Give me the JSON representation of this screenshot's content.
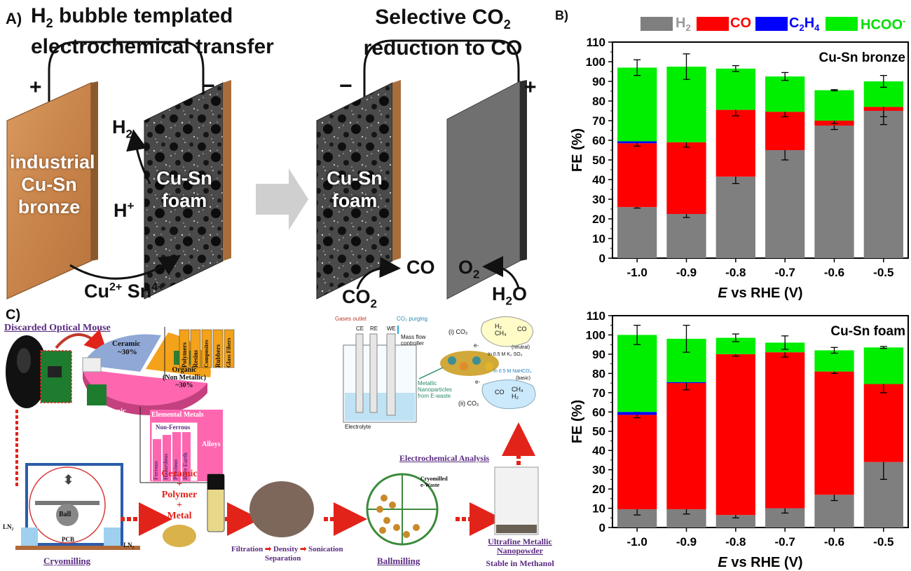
{
  "panelA": {
    "letter": "A)",
    "title_line1_prefix": "H",
    "title_line1_sub": "2",
    "title_line1_rest": " bubble templated",
    "title_line2": "electrochemical transfer",
    "right_title_line1_prefix": "Selective CO",
    "right_title_line1_sub": "2",
    "right_title_line2": "reduction to CO",
    "plus": "+",
    "minus": "−",
    "bronze_text": [
      "industrial",
      "Cu-Sn",
      "bronze"
    ],
    "foam_text": [
      "Cu-Sn",
      "foam"
    ],
    "h2": "H",
    "h2_sub": "2",
    "hplus": "H",
    "hplus_sup": "+",
    "ions_cu": "Cu",
    "ions_cu_sup": "2+",
    "ions_sn": " Sn",
    "ions_sn_sup": "4+",
    "co2": "CO",
    "co2_sub": "2",
    "co": "CO",
    "o2": "O",
    "o2_sub": "2",
    "h2o": "H",
    "h2o_sub": "2",
    "h2o_rest": "O"
  },
  "panelB": {
    "letter": "B)",
    "legend": [
      {
        "label": "H",
        "sub": "2",
        "color": "#7f7f7f"
      },
      {
        "label": "CO",
        "sub": "",
        "color": "#ff0000"
      },
      {
        "label": "C",
        "sub": "2",
        "label2": "H",
        "sub2": "4",
        "color": "#0000ff"
      },
      {
        "label": "HCOO",
        "sup": "-",
        "color": "#00ee00"
      }
    ],
    "ylabel": "FE (%)",
    "xlabel_italic": "E",
    "xlabel_rest": " vs RHE (V)"
  },
  "panelC": {
    "letter": "C)",
    "mouse_title": "Discarded Optical Mouse",
    "ceramic": "Ceramic",
    "ceramic_pct": "~30%",
    "organic": "Organic",
    "organic_sub": "(Non Metallic)",
    "organic_pct": "~30%",
    "inorganic": "Inorganic",
    "inorganic_sub": "(Metallic)",
    "inorganic_pct": "~40%",
    "organic_bars": [
      "Polymers",
      "Resins",
      "Composites",
      "Rubbers",
      "Glass Fibers"
    ],
    "elemental": "Elemental Metals",
    "nonferrous": "Non-Ferrous",
    "metal_bars": [
      "Ferrous",
      "Hazardous",
      "Precious",
      "Rare Earth"
    ],
    "alloys": "Alloys",
    "gases_outlet": "Gases outlet",
    "co2_purging": "CO₂ purging",
    "ce": "CE",
    "re": "RE",
    "we": "WE",
    "mass_flow": "Mass flow",
    "controller": "controller",
    "electrolyte": "Electrolyte",
    "metallic_np": [
      "Metallic",
      "Nanoparticles",
      "from E-waste"
    ],
    "i_co2": "(i) CO₂",
    "ii_co2": "(ii) CO₂",
    "eminus": "e-",
    "neutral_h2": "H₂",
    "neutral_ch4": "CH₄",
    "neutral_co": "CO",
    "neutral_label": "(neutral)",
    "neutral_sol": "In 0.5 M K₂ SO₄",
    "basic_sol": "In 0.5 M NaHCO₃",
    "basic_label": "(basic)",
    "basic_co": "CO",
    "basic_ch4": "CH₄",
    "basic_h2": "H₂",
    "echem": "Electrochemical Analysis",
    "ln2": "LN₂",
    "ball": "Ball",
    "pcb": "PCB",
    "cryomilling": "Cryomilling",
    "mix": [
      "Ceramic",
      "+",
      "Polymer",
      "+",
      "Metal"
    ],
    "filtration": "Filtration",
    "density": "Density",
    "sonication": "Sonication",
    "separation": "Separation",
    "cryomilled": [
      "Cryomilled",
      "e-Waste"
    ],
    "ballmilling": "Ballmilling",
    "ultrafine": [
      "Ultrafine Metallic",
      "Nanopowder"
    ],
    "stable": "Stable in Methanol"
  },
  "chart_data": [
    {
      "type": "bar",
      "stacked": true,
      "title": "Cu-Sn bronze",
      "xlabel": "E vs RHE (V)",
      "ylabel": "FE (%)",
      "categories": [
        "-1.0",
        "-0.9",
        "-0.8",
        "-0.7",
        "-0.6",
        "-0.5"
      ],
      "ylim": [
        0,
        110
      ],
      "yticks": [
        0,
        10,
        20,
        30,
        40,
        50,
        60,
        70,
        80,
        90,
        100,
        110
      ],
      "series": [
        {
          "name": "H2",
          "values": [
            26,
            22.5,
            41.5,
            55,
            67.5,
            75
          ],
          "errors": [
            0.5,
            1.8,
            3.5,
            5,
            2,
            7
          ]
        },
        {
          "name": "CO",
          "values": [
            32.5,
            36.5,
            34,
            19.5,
            2.5,
            2
          ],
          "errors": [
            1.5,
            2.5,
            3,
            2.5,
            1.5,
            5
          ]
        },
        {
          "name": "C2H4",
          "values": [
            1,
            0,
            0,
            0,
            0,
            0
          ],
          "errors": [
            0,
            0,
            0,
            0,
            0,
            0
          ]
        },
        {
          "name": "HCOO-",
          "values": [
            37.5,
            38.5,
            21,
            18,
            15.5,
            13
          ],
          "errors": [
            4,
            6.5,
            1.5,
            2,
            0.3,
            3
          ]
        }
      ]
    },
    {
      "type": "bar",
      "stacked": true,
      "title": "Cu-Sn foam",
      "xlabel": "E vs RHE (V)",
      "ylabel": "FE (%)",
      "categories": [
        "-1.0",
        "-0.9",
        "-0.8",
        "-0.7",
        "-0.6",
        "-0.5"
      ],
      "ylim": [
        0,
        110
      ],
      "yticks": [
        0,
        10,
        20,
        30,
        40,
        50,
        60,
        70,
        80,
        90,
        100,
        110
      ],
      "series": [
        {
          "name": "H2",
          "values": [
            9.5,
            9.5,
            6.5,
            10,
            17,
            34
          ],
          "errors": [
            3,
            2.5,
            1.5,
            2.5,
            3,
            9
          ]
        },
        {
          "name": "CO",
          "values": [
            49,
            65.5,
            83.5,
            81,
            64,
            40.5
          ],
          "errors": [
            1.5,
            3.5,
            1,
            2.5,
            1,
            4.5
          ]
        },
        {
          "name": "C2H4",
          "values": [
            1.5,
            0.5,
            0,
            0,
            0,
            0
          ],
          "errors": [
            0,
            0,
            0,
            0,
            0,
            0
          ]
        },
        {
          "name": "HCOO-",
          "values": [
            40,
            22.5,
            8.5,
            5,
            11,
            19
          ],
          "errors": [
            5,
            7,
            2,
            3.5,
            1.5,
            0.5
          ]
        }
      ]
    }
  ],
  "colors": {
    "h2": "#7f7f7f",
    "co": "#ff0000",
    "c2h4": "#0000ff",
    "hcoo": "#00ee00",
    "copper": "#c9874f",
    "pink": "#ff66b0",
    "orange": "#f3a21a",
    "blue_pie": "#8fa8d6",
    "purple_text": "#5a2b80"
  }
}
